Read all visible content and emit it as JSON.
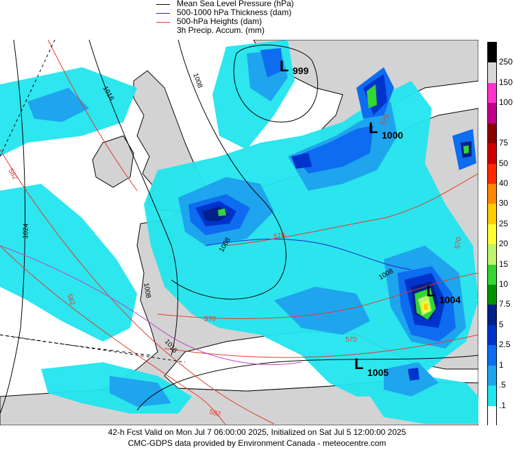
{
  "legend": {
    "mslp": "Mean Sea Level Pressure (hPa)",
    "thickness": "500-1000 hPa Thickness (dam)",
    "heights": "500-hPa Heights (dam)",
    "precip": "3h Precip. Accum. (mm)"
  },
  "colors": {
    "mslp": "#000000",
    "thickness": "#1f1fcf",
    "heights": "#e03a2a",
    "land": "#d3d3d3",
    "sea": "#ffffff"
  },
  "pressure_centers": [
    {
      "letter": "L",
      "value": "999"
    },
    {
      "letter": "L",
      "value": "1000"
    },
    {
      "letter": "L",
      "value": "1004"
    },
    {
      "letter": "L",
      "value": "1005"
    }
  ],
  "isobar_labels": [
    "1008",
    "1016",
    "1024",
    "1008",
    "1016",
    "1008",
    "1008"
  ],
  "height_labels": [
    "582",
    "582",
    "570",
    "570",
    "570",
    "576",
    "582",
    "576"
  ],
  "colorbar": [
    {
      "label": "250",
      "color": "#000000"
    },
    {
      "label": "150",
      "color": "#d8d8d8"
    },
    {
      "label": "100",
      "color": "#ff33cc"
    },
    {
      "label": "",
      "color": "#c4008a"
    },
    {
      "label": "75",
      "color": "#8b0000"
    },
    {
      "label": "50",
      "color": "#d00000"
    },
    {
      "label": "40",
      "color": "#ff2a00"
    },
    {
      "label": "30",
      "color": "#ff8800"
    },
    {
      "label": "25",
      "color": "#ffcc00"
    },
    {
      "label": "20",
      "color": "#ffff33"
    },
    {
      "label": "15",
      "color": "#bff56a"
    },
    {
      "label": "10",
      "color": "#33d633"
    },
    {
      "label": "7.5",
      "color": "#009400"
    },
    {
      "label": "5",
      "color": "#00208a"
    },
    {
      "label": "2.5",
      "color": "#0033cc"
    },
    {
      "label": "1",
      "color": "#0d6cf0"
    },
    {
      "label": ".5",
      "color": "#1ea5ee"
    },
    {
      "label": ".1",
      "color": "#22e5ee"
    },
    {
      "label": "",
      "color": "#ffffff"
    }
  ],
  "footer": {
    "line1": "42-h Fcst Valid on Mon Jul  7 06:00:00 2025, Initialized on Sat Jul  5 12:00:00 2025",
    "line2": "CMC-GDPS data provided by Environment Canada - meteocentre.com"
  }
}
